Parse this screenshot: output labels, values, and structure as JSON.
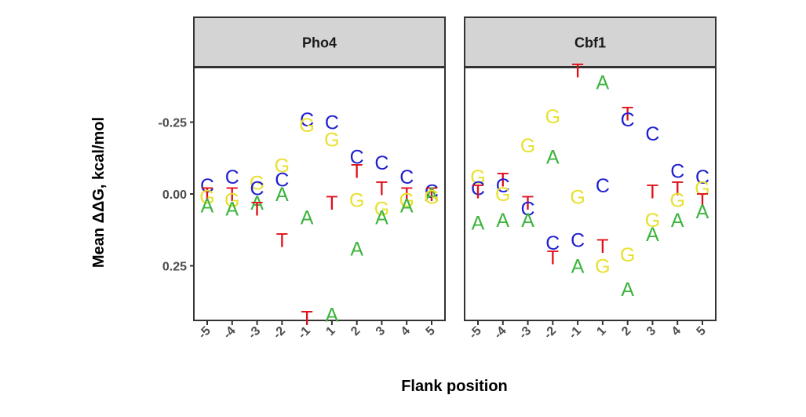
{
  "chart_data": {
    "type": "scatter",
    "mark": "text",
    "xlabel": "Flank position",
    "ylabel": "Mean ΔΔG, kcal/mol",
    "y_reversed": true,
    "ylim": [
      0.44,
      -0.44
    ],
    "yticks": [
      -0.25,
      0.0,
      0.25
    ],
    "ytick_labels": [
      "-0.25",
      "0.00",
      "0.25"
    ],
    "x_categories": [
      "-5",
      "-4",
      "-3",
      "-2",
      "-1",
      "1",
      "2",
      "3",
      "4",
      "5"
    ],
    "colors": {
      "A": "#3cb43c",
      "C": "#1f1fd0",
      "G": "#e8e030",
      "T": "#e0101a"
    },
    "panels": [
      {
        "name": "Pho4",
        "points": [
          {
            "x": "-5",
            "base": "C",
            "y": -0.03
          },
          {
            "x": "-5",
            "base": "T",
            "y": 0.0
          },
          {
            "x": "-5",
            "base": "G",
            "y": 0.01
          },
          {
            "x": "-5",
            "base": "A",
            "y": 0.04
          },
          {
            "x": "-4",
            "base": "C",
            "y": -0.06
          },
          {
            "x": "-4",
            "base": "T",
            "y": 0.0
          },
          {
            "x": "-4",
            "base": "G",
            "y": 0.02
          },
          {
            "x": "-4",
            "base": "A",
            "y": 0.05
          },
          {
            "x": "-3",
            "base": "G",
            "y": -0.04
          },
          {
            "x": "-3",
            "base": "C",
            "y": -0.02
          },
          {
            "x": "-3",
            "base": "A",
            "y": 0.03
          },
          {
            "x": "-3",
            "base": "T",
            "y": 0.05
          },
          {
            "x": "-2",
            "base": "G",
            "y": -0.1
          },
          {
            "x": "-2",
            "base": "C",
            "y": -0.05
          },
          {
            "x": "-2",
            "base": "A",
            "y": 0.0
          },
          {
            "x": "-2",
            "base": "T",
            "y": 0.16
          },
          {
            "x": "-1",
            "base": "C",
            "y": -0.26
          },
          {
            "x": "-1",
            "base": "G",
            "y": -0.24
          },
          {
            "x": "-1",
            "base": "A",
            "y": 0.08
          },
          {
            "x": "-1",
            "base": "T",
            "y": 0.43
          },
          {
            "x": "1",
            "base": "C",
            "y": -0.25
          },
          {
            "x": "1",
            "base": "G",
            "y": -0.19
          },
          {
            "x": "1",
            "base": "T",
            "y": 0.03
          },
          {
            "x": "1",
            "base": "A",
            "y": 0.42
          },
          {
            "x": "2",
            "base": "C",
            "y": -0.13
          },
          {
            "x": "2",
            "base": "T",
            "y": -0.08
          },
          {
            "x": "2",
            "base": "G",
            "y": 0.02
          },
          {
            "x": "2",
            "base": "A",
            "y": 0.19
          },
          {
            "x": "3",
            "base": "C",
            "y": -0.11
          },
          {
            "x": "3",
            "base": "T",
            "y": -0.02
          },
          {
            "x": "3",
            "base": "G",
            "y": 0.05
          },
          {
            "x": "3",
            "base": "A",
            "y": 0.08
          },
          {
            "x": "4",
            "base": "C",
            "y": -0.06
          },
          {
            "x": "4",
            "base": "T",
            "y": 0.0
          },
          {
            "x": "4",
            "base": "G",
            "y": 0.02
          },
          {
            "x": "4",
            "base": "A",
            "y": 0.04
          },
          {
            "x": "5",
            "base": "C",
            "y": -0.01
          },
          {
            "x": "5",
            "base": "T",
            "y": 0.0
          },
          {
            "x": "5",
            "base": "A",
            "y": 0.0
          },
          {
            "x": "5",
            "base": "G",
            "y": 0.01
          }
        ]
      },
      {
        "name": "Cbf1",
        "points": [
          {
            "x": "-5",
            "base": "G",
            "y": -0.06
          },
          {
            "x": "-5",
            "base": "C",
            "y": -0.02
          },
          {
            "x": "-5",
            "base": "T",
            "y": -0.01
          },
          {
            "x": "-5",
            "base": "A",
            "y": 0.1
          },
          {
            "x": "-4",
            "base": "T",
            "y": -0.05
          },
          {
            "x": "-4",
            "base": "C",
            "y": -0.03
          },
          {
            "x": "-4",
            "base": "G",
            "y": 0.0
          },
          {
            "x": "-4",
            "base": "A",
            "y": 0.09
          },
          {
            "x": "-3",
            "base": "G",
            "y": -0.17
          },
          {
            "x": "-3",
            "base": "T",
            "y": 0.03
          },
          {
            "x": "-3",
            "base": "C",
            "y": 0.05
          },
          {
            "x": "-3",
            "base": "A",
            "y": 0.09
          },
          {
            "x": "-2",
            "base": "G",
            "y": -0.27
          },
          {
            "x": "-2",
            "base": "A",
            "y": -0.13
          },
          {
            "x": "-2",
            "base": "C",
            "y": 0.17
          },
          {
            "x": "-2",
            "base": "T",
            "y": 0.22
          },
          {
            "x": "-1",
            "base": "T",
            "y": -0.43
          },
          {
            "x": "-1",
            "base": "G",
            "y": 0.01
          },
          {
            "x": "-1",
            "base": "C",
            "y": 0.16
          },
          {
            "x": "-1",
            "base": "A",
            "y": 0.25
          },
          {
            "x": "1",
            "base": "A",
            "y": -0.39
          },
          {
            "x": "1",
            "base": "C",
            "y": -0.03
          },
          {
            "x": "1",
            "base": "T",
            "y": 0.18
          },
          {
            "x": "1",
            "base": "G",
            "y": 0.25
          },
          {
            "x": "2",
            "base": "T",
            "y": -0.28
          },
          {
            "x": "2",
            "base": "C",
            "y": -0.26
          },
          {
            "x": "2",
            "base": "G",
            "y": 0.21
          },
          {
            "x": "2",
            "base": "A",
            "y": 0.33
          },
          {
            "x": "3",
            "base": "C",
            "y": -0.21
          },
          {
            "x": "3",
            "base": "T",
            "y": -0.01
          },
          {
            "x": "3",
            "base": "G",
            "y": 0.09
          },
          {
            "x": "3",
            "base": "A",
            "y": 0.14
          },
          {
            "x": "4",
            "base": "C",
            "y": -0.08
          },
          {
            "x": "4",
            "base": "T",
            "y": -0.02
          },
          {
            "x": "4",
            "base": "G",
            "y": 0.02
          },
          {
            "x": "4",
            "base": "A",
            "y": 0.09
          },
          {
            "x": "5",
            "base": "C",
            "y": -0.06
          },
          {
            "x": "5",
            "base": "G",
            "y": -0.02
          },
          {
            "x": "5",
            "base": "T",
            "y": 0.02
          },
          {
            "x": "5",
            "base": "A",
            "y": 0.06
          }
        ]
      }
    ]
  }
}
